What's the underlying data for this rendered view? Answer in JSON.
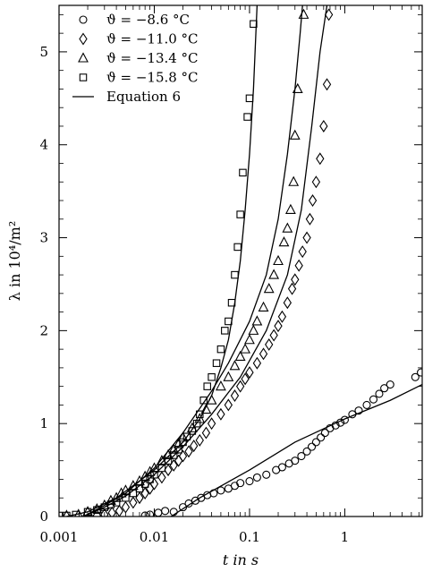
{
  "chart_data": {
    "type": "scatter",
    "title": "",
    "xlabel": "t in s",
    "ylabel": "λ in 10⁴/m²",
    "xscale": "log",
    "xlim": [
      0.001,
      6.5
    ],
    "ylim": [
      0,
      5.5
    ],
    "x_ticks": [
      0.001,
      0.01,
      0.1,
      1
    ],
    "x_tick_labels": [
      "0.001",
      "0.01",
      "0.1",
      "1"
    ],
    "y_ticks": [
      0,
      1,
      2,
      3,
      4,
      5
    ],
    "y_tick_labels": [
      "0",
      "1",
      "2",
      "3",
      "4",
      "5"
    ],
    "legend_position": "top-left",
    "grid": false,
    "series": [
      {
        "name": "ϑ = −8.6 °C",
        "marker": "circle",
        "points": [
          [
            0.008,
            0.01
          ],
          [
            0.009,
            0.02
          ],
          [
            0.011,
            0.04
          ],
          [
            0.013,
            0.06
          ],
          [
            0.016,
            0.05
          ],
          [
            0.02,
            0.1
          ],
          [
            0.023,
            0.14
          ],
          [
            0.027,
            0.17
          ],
          [
            0.031,
            0.2
          ],
          [
            0.036,
            0.23
          ],
          [
            0.042,
            0.25
          ],
          [
            0.05,
            0.28
          ],
          [
            0.06,
            0.3
          ],
          [
            0.07,
            0.33
          ],
          [
            0.08,
            0.36
          ],
          [
            0.1,
            0.38
          ],
          [
            0.12,
            0.42
          ],
          [
            0.15,
            0.45
          ],
          [
            0.19,
            0.5
          ],
          [
            0.22,
            0.53
          ],
          [
            0.26,
            0.57
          ],
          [
            0.3,
            0.6
          ],
          [
            0.35,
            0.65
          ],
          [
            0.4,
            0.7
          ],
          [
            0.45,
            0.75
          ],
          [
            0.5,
            0.8
          ],
          [
            0.56,
            0.85
          ],
          [
            0.62,
            0.9
          ],
          [
            0.7,
            0.95
          ],
          [
            0.8,
            0.98
          ],
          [
            0.9,
            1.01
          ],
          [
            1.0,
            1.04
          ],
          [
            1.2,
            1.1
          ],
          [
            1.4,
            1.14
          ],
          [
            1.7,
            1.2
          ],
          [
            2.0,
            1.26
          ],
          [
            2.3,
            1.32
          ],
          [
            2.6,
            1.38
          ],
          [
            3.0,
            1.42
          ],
          [
            5.5,
            1.5
          ],
          [
            6.3,
            1.55
          ]
        ]
      },
      {
        "name": "ϑ = −11.0 °C",
        "marker": "diamond",
        "points": [
          [
            0.0025,
            0.01
          ],
          [
            0.003,
            0.02
          ],
          [
            0.0036,
            0.04
          ],
          [
            0.0043,
            0.06
          ],
          [
            0.005,
            0.1
          ],
          [
            0.006,
            0.15
          ],
          [
            0.007,
            0.2
          ],
          [
            0.008,
            0.25
          ],
          [
            0.009,
            0.3
          ],
          [
            0.01,
            0.35
          ],
          [
            0.012,
            0.42
          ],
          [
            0.014,
            0.5
          ],
          [
            0.016,
            0.55
          ],
          [
            0.018,
            0.6
          ],
          [
            0.02,
            0.65
          ],
          [
            0.023,
            0.7
          ],
          [
            0.026,
            0.76
          ],
          [
            0.03,
            0.82
          ],
          [
            0.035,
            0.9
          ],
          [
            0.04,
            1.0
          ],
          [
            0.05,
            1.1
          ],
          [
            0.06,
            1.2
          ],
          [
            0.07,
            1.3
          ],
          [
            0.08,
            1.4
          ],
          [
            0.09,
            1.48
          ],
          [
            0.1,
            1.55
          ],
          [
            0.12,
            1.65
          ],
          [
            0.14,
            1.75
          ],
          [
            0.16,
            1.85
          ],
          [
            0.18,
            1.95
          ],
          [
            0.2,
            2.05
          ],
          [
            0.22,
            2.15
          ],
          [
            0.25,
            2.3
          ],
          [
            0.28,
            2.45
          ],
          [
            0.3,
            2.55
          ],
          [
            0.33,
            2.7
          ],
          [
            0.36,
            2.85
          ],
          [
            0.4,
            3.0
          ],
          [
            0.43,
            3.2
          ],
          [
            0.46,
            3.4
          ],
          [
            0.5,
            3.6
          ],
          [
            0.55,
            3.85
          ],
          [
            0.6,
            4.2
          ],
          [
            0.65,
            4.65
          ],
          [
            0.68,
            5.4
          ]
        ]
      },
      {
        "name": "ϑ = −13.4 °C",
        "marker": "triangle",
        "points": [
          [
            0.0012,
            0.01
          ],
          [
            0.0016,
            0.02
          ],
          [
            0.002,
            0.05
          ],
          [
            0.0025,
            0.08
          ],
          [
            0.003,
            0.12
          ],
          [
            0.0035,
            0.17
          ],
          [
            0.004,
            0.2
          ],
          [
            0.0045,
            0.25
          ],
          [
            0.005,
            0.28
          ],
          [
            0.006,
            0.33
          ],
          [
            0.007,
            0.38
          ],
          [
            0.008,
            0.43
          ],
          [
            0.009,
            0.48
          ],
          [
            0.01,
            0.52
          ],
          [
            0.012,
            0.6
          ],
          [
            0.014,
            0.66
          ],
          [
            0.016,
            0.72
          ],
          [
            0.018,
            0.78
          ],
          [
            0.02,
            0.85
          ],
          [
            0.025,
            0.95
          ],
          [
            0.03,
            1.05
          ],
          [
            0.035,
            1.15
          ],
          [
            0.04,
            1.25
          ],
          [
            0.05,
            1.4
          ],
          [
            0.06,
            1.5
          ],
          [
            0.07,
            1.62
          ],
          [
            0.08,
            1.72
          ],
          [
            0.09,
            1.8
          ],
          [
            0.1,
            1.9
          ],
          [
            0.11,
            2.0
          ],
          [
            0.12,
            2.1
          ],
          [
            0.14,
            2.25
          ],
          [
            0.16,
            2.45
          ],
          [
            0.18,
            2.6
          ],
          [
            0.2,
            2.75
          ],
          [
            0.23,
            2.95
          ],
          [
            0.25,
            3.1
          ],
          [
            0.27,
            3.3
          ],
          [
            0.29,
            3.6
          ],
          [
            0.3,
            4.1
          ],
          [
            0.32,
            4.6
          ],
          [
            0.37,
            5.4
          ]
        ]
      },
      {
        "name": "ϑ = −15.8 °C",
        "marker": "square",
        "points": [
          [
            0.001,
            0.01
          ],
          [
            0.0012,
            0.01
          ],
          [
            0.0015,
            0.02
          ],
          [
            0.002,
            0.05
          ],
          [
            0.0025,
            0.07
          ],
          [
            0.003,
            0.1
          ],
          [
            0.0035,
            0.13
          ],
          [
            0.004,
            0.15
          ],
          [
            0.005,
            0.2
          ],
          [
            0.006,
            0.25
          ],
          [
            0.007,
            0.3
          ],
          [
            0.008,
            0.35
          ],
          [
            0.009,
            0.4
          ],
          [
            0.01,
            0.45
          ],
          [
            0.012,
            0.52
          ],
          [
            0.014,
            0.6
          ],
          [
            0.016,
            0.66
          ],
          [
            0.018,
            0.72
          ],
          [
            0.02,
            0.8
          ],
          [
            0.022,
            0.86
          ],
          [
            0.025,
            0.92
          ],
          [
            0.028,
            1.0
          ],
          [
            0.03,
            1.1
          ],
          [
            0.033,
            1.25
          ],
          [
            0.036,
            1.4
          ],
          [
            0.04,
            1.5
          ],
          [
            0.045,
            1.65
          ],
          [
            0.05,
            1.8
          ],
          [
            0.055,
            2.0
          ],
          [
            0.06,
            2.1
          ],
          [
            0.065,
            2.3
          ],
          [
            0.07,
            2.6
          ],
          [
            0.075,
            2.9
          ],
          [
            0.08,
            3.25
          ],
          [
            0.085,
            3.7
          ],
          [
            0.095,
            4.3
          ],
          [
            0.1,
            4.5
          ],
          [
            0.11,
            5.3
          ]
        ]
      },
      {
        "name": "Equation 6",
        "marker": "line",
        "curves": [
          [
            [
              0.015,
              0.0
            ],
            [
              0.03,
              0.2
            ],
            [
              0.1,
              0.5
            ],
            [
              0.3,
              0.8
            ],
            [
              1.0,
              1.05
            ],
            [
              3.0,
              1.25
            ],
            [
              6.5,
              1.42
            ]
          ],
          [
            [
              0.0018,
              0.0
            ],
            [
              0.003,
              0.1
            ],
            [
              0.005,
              0.22
            ],
            [
              0.01,
              0.45
            ],
            [
              0.02,
              0.75
            ],
            [
              0.04,
              1.1
            ],
            [
              0.08,
              1.5
            ],
            [
              0.15,
              2.0
            ],
            [
              0.25,
              2.6
            ],
            [
              0.35,
              3.3
            ],
            [
              0.45,
              4.2
            ],
            [
              0.55,
              5.0
            ],
            [
              0.65,
              5.5
            ]
          ],
          [
            [
              0.0018,
              0.0
            ],
            [
              0.003,
              0.12
            ],
            [
              0.005,
              0.25
            ],
            [
              0.01,
              0.52
            ],
            [
              0.02,
              0.9
            ],
            [
              0.04,
              1.35
            ],
            [
              0.06,
              1.65
            ],
            [
              0.1,
              2.1
            ],
            [
              0.15,
              2.6
            ],
            [
              0.2,
              3.2
            ],
            [
              0.25,
              3.9
            ],
            [
              0.3,
              4.6
            ],
            [
              0.34,
              5.2
            ],
            [
              0.36,
              5.5
            ]
          ],
          [
            [
              0.0012,
              0.0
            ],
            [
              0.002,
              0.05
            ],
            [
              0.004,
              0.2
            ],
            [
              0.01,
              0.5
            ],
            [
              0.02,
              0.8
            ],
            [
              0.03,
              1.05
            ],
            [
              0.04,
              1.3
            ],
            [
              0.05,
              1.6
            ],
            [
              0.06,
              1.9
            ],
            [
              0.07,
              2.3
            ],
            [
              0.08,
              2.75
            ],
            [
              0.09,
              3.3
            ],
            [
              0.1,
              3.9
            ],
            [
              0.11,
              4.6
            ],
            [
              0.12,
              5.5
            ]
          ]
        ]
      }
    ]
  }
}
